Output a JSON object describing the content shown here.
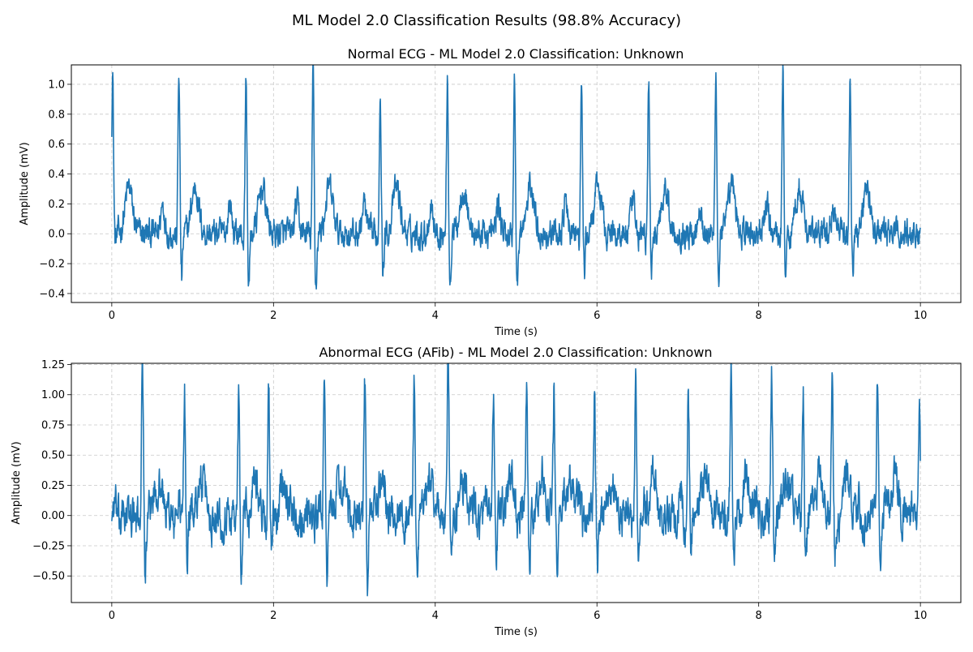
{
  "figure": {
    "suptitle": "ML Model 2.0 Classification Results (98.8% Accuracy)"
  },
  "colors": {
    "line": "#1f77b4",
    "grid": "#c8c8c8",
    "axis": "#000000"
  },
  "chart_data": [
    {
      "type": "line",
      "title": "Normal ECG - ML Model 2.0 Classification: Unknown",
      "xlabel": "Time (s)",
      "ylabel": "Amplitude (mV)",
      "xlim": [
        -0.5,
        10.5
      ],
      "ylim": [
        -0.46,
        1.13
      ],
      "xticks": [
        0,
        2,
        4,
        6,
        8,
        10
      ],
      "yticks": [
        -0.4,
        -0.2,
        0.0,
        0.2,
        0.4,
        0.6,
        0.8,
        1.0
      ],
      "ytick_labels": [
        "−0.4",
        "−0.2",
        "0.0",
        "0.2",
        "0.4",
        "0.6",
        "0.8",
        "1.0"
      ],
      "grid": true,
      "grid_style": "dashed",
      "x_range": [
        0,
        10
      ],
      "r_peaks": [
        0.01,
        0.83,
        1.66,
        2.49,
        3.32,
        4.15,
        4.98,
        5.81,
        6.64,
        7.47,
        8.3,
        9.13
      ],
      "r_amplitudes": [
        1.06,
        1.05,
        1.0,
        1.06,
        0.95,
        1.0,
        1.0,
        0.96,
        0.98,
        1.07,
        1.06,
        0.97
      ],
      "s_depths": [
        -0.07,
        -0.32,
        -0.36,
        -0.37,
        -0.28,
        -0.35,
        -0.38,
        -0.28,
        -0.31,
        -0.31,
        -0.32,
        -0.31
      ],
      "t_amplitude": 0.31,
      "p_amplitude": 0.2,
      "noise_amplitude": 0.07
    },
    {
      "type": "line",
      "title": "Abnormal ECG (AFib) - ML Model 2.0 Classification: Unknown",
      "xlabel": "Time (s)",
      "ylabel": "Amplitude (mV)",
      "xlim": [
        -0.5,
        10.5
      ],
      "ylim": [
        -0.72,
        1.26
      ],
      "xticks": [
        0,
        2,
        4,
        6,
        8,
        10
      ],
      "yticks": [
        -0.5,
        -0.25,
        0.0,
        0.25,
        0.5,
        0.75,
        1.0,
        1.25
      ],
      "ytick_labels": [
        "−0.50",
        "−0.25",
        "0.00",
        "0.25",
        "0.50",
        "0.75",
        "1.00",
        "1.25"
      ],
      "grid": true,
      "grid_style": "dashed",
      "x_range": [
        0,
        10
      ],
      "r_peaks": [
        0.38,
        0.9,
        1.57,
        1.94,
        2.63,
        3.13,
        3.74,
        4.16,
        4.72,
        5.13,
        5.47,
        5.97,
        6.48,
        7.13,
        7.66,
        8.16,
        8.55,
        8.91,
        9.47,
        9.99
      ],
      "r_amplitudes": [
        1.16,
        1.02,
        1.0,
        0.98,
        1.09,
        1.07,
        1.07,
        1.17,
        1.03,
        0.92,
        1.02,
        1.07,
        1.07,
        0.97,
        1.11,
        1.04,
        1.04,
        1.0,
        1.1,
        0.93
      ],
      "s_depths": [
        -0.43,
        -0.38,
        -0.55,
        -0.43,
        -0.42,
        -0.6,
        -0.41,
        -0.41,
        -0.43,
        -0.44,
        -0.38,
        -0.44,
        -0.5,
        -0.36,
        -0.42,
        -0.41,
        -0.42,
        -0.37,
        -0.39,
        -0.45
      ],
      "t_amplitude": 0.3,
      "p_amplitude": 0.0,
      "noise_amplitude": 0.12
    }
  ]
}
